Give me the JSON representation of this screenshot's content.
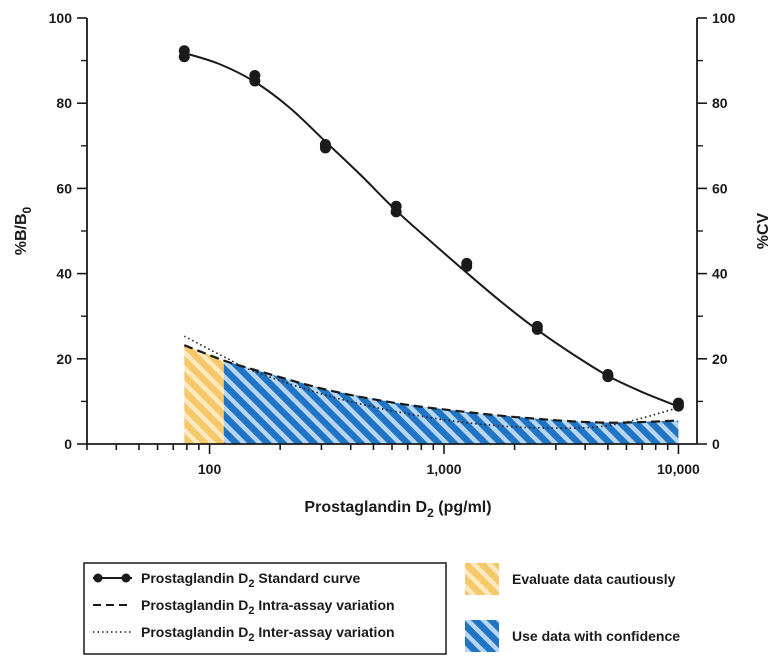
{
  "chart_data": {
    "type": "line",
    "x_scale": "log",
    "xlim": [
      30,
      12000
    ],
    "ylim_left": [
      0,
      100
    ],
    "ylim_right": [
      0,
      100
    ],
    "xlabel": {
      "main": "Prostaglandin D",
      "sub": "2",
      "tail": " (pg/ml)"
    },
    "ylabel_left": {
      "main": "%B/B",
      "sub": "0"
    },
    "ylabel_right": "%CV",
    "x_ticks": [
      {
        "value": 100,
        "label": "100"
      },
      {
        "value": 1000,
        "label": "1,000"
      },
      {
        "value": 10000,
        "label": "10,000"
      }
    ],
    "y_ticks": [
      {
        "value": 0,
        "label": "0"
      },
      {
        "value": 20,
        "label": "20"
      },
      {
        "value": 40,
        "label": "40"
      },
      {
        "value": 60,
        "label": "60"
      },
      {
        "value": 80,
        "label": "80"
      },
      {
        "value": 100,
        "label": "100"
      }
    ],
    "series": [
      {
        "name": "Standard curve",
        "axis": "left",
        "style": "solid-with-markers",
        "points": [
          {
            "x": 78,
            "y": 92.3
          },
          {
            "x": 78,
            "y": 90.9
          },
          {
            "x": 156,
            "y": 86.5
          },
          {
            "x": 156,
            "y": 85.2
          },
          {
            "x": 312,
            "y": 70.3
          },
          {
            "x": 312,
            "y": 69.5
          },
          {
            "x": 625,
            "y": 55.8
          },
          {
            "x": 625,
            "y": 54.5
          },
          {
            "x": 1250,
            "y": 42.4
          },
          {
            "x": 1250,
            "y": 41.7
          },
          {
            "x": 2500,
            "y": 27.6
          },
          {
            "x": 2500,
            "y": 26.9
          },
          {
            "x": 5000,
            "y": 16.3
          },
          {
            "x": 5000,
            "y": 15.8
          },
          {
            "x": 10000,
            "y": 9.6
          },
          {
            "x": 10000,
            "y": 8.9
          }
        ],
        "fit": [
          {
            "x": 78,
            "y": 91.8
          },
          {
            "x": 110,
            "y": 89.2
          },
          {
            "x": 156,
            "y": 85.0
          },
          {
            "x": 220,
            "y": 78.9
          },
          {
            "x": 312,
            "y": 71.0
          },
          {
            "x": 440,
            "y": 63.2
          },
          {
            "x": 625,
            "y": 54.8
          },
          {
            "x": 880,
            "y": 47.5
          },
          {
            "x": 1250,
            "y": 40.2
          },
          {
            "x": 1760,
            "y": 33.3
          },
          {
            "x": 2500,
            "y": 26.8
          },
          {
            "x": 3540,
            "y": 21.1
          },
          {
            "x": 5000,
            "y": 16.0
          },
          {
            "x": 7000,
            "y": 12.2
          },
          {
            "x": 10000,
            "y": 8.8
          }
        ]
      },
      {
        "name": "Intra-assay variation",
        "axis": "right",
        "style": "dashed",
        "points": [
          {
            "x": 78,
            "y": 23.2
          },
          {
            "x": 115,
            "y": 19.6
          },
          {
            "x": 156,
            "y": 17.4
          },
          {
            "x": 312,
            "y": 12.8
          },
          {
            "x": 625,
            "y": 9.6
          },
          {
            "x": 1250,
            "y": 7.5
          },
          {
            "x": 2500,
            "y": 5.9
          },
          {
            "x": 5000,
            "y": 5.0
          },
          {
            "x": 10000,
            "y": 5.5
          }
        ]
      },
      {
        "name": "Inter-assay variation",
        "axis": "right",
        "style": "dotted",
        "points": [
          {
            "x": 78,
            "y": 25.3
          },
          {
            "x": 115,
            "y": 20.5
          },
          {
            "x": 156,
            "y": 17.0
          },
          {
            "x": 312,
            "y": 11.5
          },
          {
            "x": 625,
            "y": 7.6
          },
          {
            "x": 1250,
            "y": 5.0
          },
          {
            "x": 2500,
            "y": 3.8
          },
          {
            "x": 5000,
            "y": 4.3
          },
          {
            "x": 10000,
            "y": 8.5
          }
        ]
      }
    ],
    "regions": [
      {
        "name": "Evaluate data cautiously",
        "x_from": 78,
        "x_to": 115,
        "color": "#f5c969"
      },
      {
        "name": "Use data with confidence",
        "x_from": 115,
        "x_to": 10000,
        "color": "#1f74c4"
      }
    ],
    "legend": {
      "lines": [
        {
          "prefix": "Prostaglandin D",
          "sub": "2",
          "suffix": " Standard curve",
          "style": "solid-with-markers"
        },
        {
          "prefix": "Prostaglandin D",
          "sub": "2",
          "suffix": " Intra-assay variation",
          "style": "dashed"
        },
        {
          "prefix": "Prostaglandin D",
          "sub": "2",
          "suffix": " Inter-assay variation",
          "style": "dotted"
        }
      ],
      "swatches": [
        {
          "label": "Evaluate data cautiously",
          "color": "#f5c969"
        },
        {
          "label": "Use data with confidence",
          "color": "#1f74c4"
        }
      ]
    },
    "grid": false,
    "colors": {
      "line": "#1a1a1a",
      "caution": "#f5c969",
      "confidence": "#1f74c4"
    }
  }
}
